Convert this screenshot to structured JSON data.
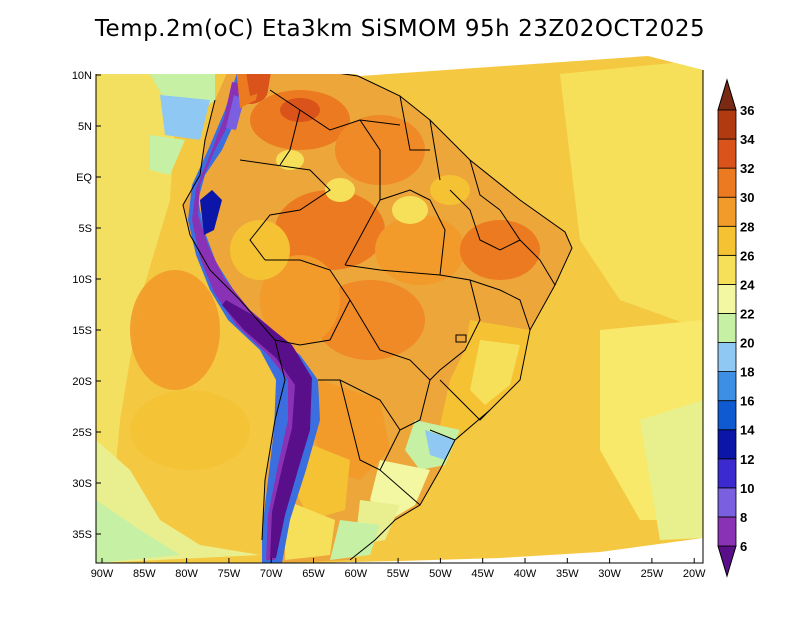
{
  "title": "Temp.2m(oC) Eta3km SiSMOM 95h 23Z02OCT2025",
  "y_ticks": [
    "10N",
    "5N",
    "EQ",
    "5S",
    "10S",
    "15S",
    "20S",
    "25S",
    "30S",
    "35S"
  ],
  "x_ticks": [
    "90W",
    "85W",
    "80W",
    "75W",
    "70W",
    "65W",
    "60W",
    "55W",
    "50W",
    "45W",
    "40W",
    "35W",
    "30W",
    "25W",
    "20W"
  ],
  "colorbar": {
    "labels": [
      "6",
      "8",
      "10",
      "12",
      "14",
      "16",
      "18",
      "20",
      "22",
      "24",
      "26",
      "28",
      "30",
      "32",
      "34",
      "36"
    ],
    "colors": [
      "#5a0f8a",
      "#8a32b5",
      "#7a5fe0",
      "#3a2ad0",
      "#0b16a8",
      "#0f5ad0",
      "#3d8fe6",
      "#8fc8f2",
      "#c6f0a3",
      "#f4f7a2",
      "#f6e05a",
      "#f4c233",
      "#f29a2a",
      "#ec7a20",
      "#d9531a",
      "#b23a10",
      "#7a2a14"
    ]
  },
  "map": {
    "ocean_color": "#f5c842",
    "land_base_color": "#eda63a",
    "hot_color": "#ef8a26",
    "andes_cold_color": "#6a1f9e",
    "andes_mid_color": "#3b6fe0"
  }
}
